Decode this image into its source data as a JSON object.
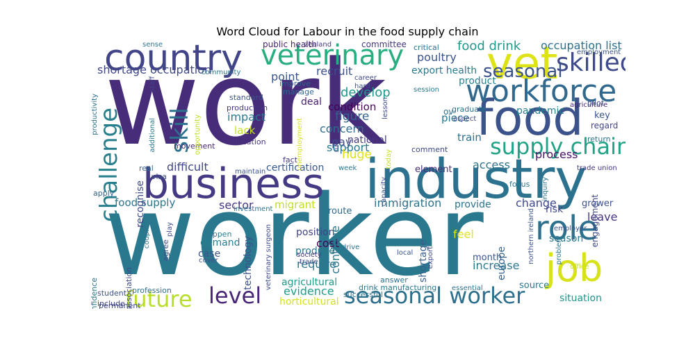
{
  "chart_data": {
    "type": "wordcloud",
    "title": "Word Cloud for Labour in the food supply chain",
    "colormap": "viridis",
    "words": [
      {
        "text": "work",
        "weight": 1.0,
        "color": "#472c7a"
      },
      {
        "text": "worker",
        "weight": 0.97,
        "color": "#2a788e"
      },
      {
        "text": "food",
        "weight": 0.46,
        "color": "#3b528b"
      },
      {
        "text": "industry",
        "weight": 0.44,
        "color": "#2c728e"
      },
      {
        "text": "business",
        "weight": 0.4,
        "color": "#443983"
      },
      {
        "text": "vet",
        "weight": 0.38,
        "color": "#dde318"
      },
      {
        "text": "country",
        "weight": 0.36,
        "color": "#414487"
      },
      {
        "text": "veterinary",
        "weight": 0.3,
        "color": "#29af7f"
      },
      {
        "text": "workforce",
        "weight": 0.28,
        "color": "#31688e"
      },
      {
        "text": "job",
        "weight": 0.3,
        "color": "#d8e219"
      },
      {
        "text": "role",
        "weight": 0.24,
        "color": "#2d708e"
      },
      {
        "text": "skilled",
        "weight": 0.22,
        "color": "#3e4a89"
      },
      {
        "text": "seasonal worker",
        "weight": 0.22,
        "color": "#2d708e"
      },
      {
        "text": "supply chain",
        "weight": 0.2,
        "color": "#20a386"
      },
      {
        "text": "future",
        "weight": 0.2,
        "color": "#b8de29"
      },
      {
        "text": "level",
        "weight": 0.2,
        "color": "#482576"
      },
      {
        "text": "challenge",
        "weight": 0.18,
        "color": "#277f8e"
      },
      {
        "text": "skill",
        "weight": 0.18,
        "color": "#2c728e"
      },
      {
        "text": "seasonal",
        "weight": 0.14,
        "color": "#3b528b"
      },
      {
        "text": "shortage occupation",
        "weight": 0.1,
        "color": "#3f4788"
      },
      {
        "text": "food drink",
        "weight": 0.12,
        "color": "#1f9a8a"
      },
      {
        "text": "occupation list",
        "weight": 0.1,
        "color": "#2d708e"
      },
      {
        "text": "employment",
        "weight": 0.06,
        "color": "#3b528b"
      },
      {
        "text": "agriculture",
        "weight": 0.05,
        "color": "#482878"
      },
      {
        "text": "poultry",
        "weight": 0.1,
        "color": "#39558c"
      },
      {
        "text": "export health",
        "weight": 0.1,
        "color": "#2a788e"
      },
      {
        "text": "product",
        "weight": 0.1,
        "color": "#25848e"
      },
      {
        "text": "point",
        "weight": 0.11,
        "color": "#39568c"
      },
      {
        "text": "recruit",
        "weight": 0.1,
        "color": "#3b528b"
      },
      {
        "text": "develop",
        "weight": 0.1,
        "color": "#1f968b"
      },
      {
        "text": "condition",
        "weight": 0.1,
        "color": "#440154"
      },
      {
        "text": "deal",
        "weight": 0.1,
        "color": "#481f70"
      },
      {
        "text": "impact",
        "weight": 0.1,
        "color": "#2a788e"
      },
      {
        "text": "lack",
        "weight": 0.1,
        "color": "#c5e021"
      },
      {
        "text": "education",
        "weight": 0.07,
        "color": "#46337e"
      },
      {
        "text": "figure",
        "weight": 0.12,
        "color": "#33638d"
      },
      {
        "text": "concern",
        "weight": 0.12,
        "color": "#2f6c8e"
      },
      {
        "text": "pay",
        "weight": 0.12,
        "color": "#3e4c8a"
      },
      {
        "text": "national",
        "weight": 0.1,
        "color": "#453781"
      },
      {
        "text": "support",
        "weight": 0.1,
        "color": "#2a788e"
      },
      {
        "text": "huge",
        "weight": 0.12,
        "color": "#dfe318"
      },
      {
        "text": "pandemic",
        "weight": 0.09,
        "color": "#26818e"
      },
      {
        "text": "key",
        "weight": 0.09,
        "color": "#3b528b"
      },
      {
        "text": "regard",
        "weight": 0.08,
        "color": "#414487"
      },
      {
        "text": "piece",
        "weight": 0.1,
        "color": "#2b758e"
      },
      {
        "text": "train",
        "weight": 0.1,
        "color": "#2c728e"
      },
      {
        "text": "difficult",
        "weight": 0.12,
        "color": "#404688"
      },
      {
        "text": "certification",
        "weight": 0.09,
        "color": "#38588c"
      },
      {
        "text": "access",
        "weight": 0.11,
        "color": "#2c728e"
      },
      {
        "text": "process",
        "weight": 0.1,
        "color": "#471063"
      },
      {
        "text": "element",
        "weight": 0.09,
        "color": "#472d7b"
      },
      {
        "text": "food supply",
        "weight": 0.11,
        "color": "#2a768e"
      },
      {
        "text": "sector",
        "weight": 0.11,
        "color": "#453882"
      },
      {
        "text": "migrant",
        "weight": 0.1,
        "color": "#c0df25"
      },
      {
        "text": "immigration",
        "weight": 0.11,
        "color": "#2c728e"
      },
      {
        "text": "provide",
        "weight": 0.1,
        "color": "#2c738e"
      },
      {
        "text": "change",
        "weight": 0.11,
        "color": "#3e4989"
      },
      {
        "text": "risk",
        "weight": 0.1,
        "color": "#404588"
      },
      {
        "text": "leave",
        "weight": 0.11,
        "color": "#46337f"
      },
      {
        "text": "grower",
        "weight": 0.09,
        "color": "#3b518b"
      },
      {
        "text": "season",
        "weight": 0.09,
        "color": "#2a768e"
      },
      {
        "text": "demand",
        "weight": 0.1,
        "color": "#277f8e"
      },
      {
        "text": "case",
        "weight": 0.1,
        "color": "#3a538b"
      },
      {
        "text": "cost",
        "weight": 0.11,
        "color": "#440154"
      },
      {
        "text": "produce",
        "weight": 0.1,
        "color": "#2a788e"
      },
      {
        "text": "position",
        "weight": 0.1,
        "color": "#414487"
      },
      {
        "text": "require",
        "weight": 0.11,
        "color": "#2b758e"
      },
      {
        "text": "feel",
        "weight": 0.12,
        "color": "#e2e418"
      },
      {
        "text": "month",
        "weight": 0.1,
        "color": "#3a548c"
      },
      {
        "text": "increase",
        "weight": 0.11,
        "color": "#2a778e"
      },
      {
        "text": "evidence",
        "weight": 0.11,
        "color": "#1f9e89"
      },
      {
        "text": "agricultural",
        "weight": 0.1,
        "color": "#1f988b"
      },
      {
        "text": "horticultural",
        "weight": 0.09,
        "color": "#d2e21b"
      },
      {
        "text": "situation",
        "weight": 0.1,
        "color": "#1f968b"
      },
      {
        "text": "source",
        "weight": 0.1,
        "color": "#2a768e"
      },
      {
        "text": "technology",
        "weight": 0.09,
        "color": "#3b528b"
      },
      {
        "text": "continue",
        "weight": 0.1,
        "color": "#2a788e"
      },
      {
        "text": "shortage",
        "weight": 0.1,
        "color": "#355e8d"
      },
      {
        "text": "europe",
        "weight": 0.09,
        "color": "#33638d"
      },
      {
        "text": "engagement",
        "weight": 0.08,
        "color": "#3f4889"
      },
      {
        "text": "recognise",
        "weight": 0.09,
        "color": "#3e4989"
      },
      {
        "text": "committee",
        "weight": 0.07,
        "color": "#453882"
      },
      {
        "text": "critical",
        "weight": 0.06,
        "color": "#2c738e"
      },
      {
        "text": "public health",
        "weight": 0.06,
        "color": "#482475"
      },
      {
        "text": "standard",
        "weight": 0.06,
        "color": "#3b528b"
      },
      {
        "text": "production",
        "weight": 0.06,
        "color": "#453781"
      },
      {
        "text": "improve",
        "weight": 0.05,
        "color": "#34608d"
      },
      {
        "text": "manage",
        "weight": 0.05,
        "color": "#31688e"
      },
      {
        "text": "career",
        "weight": 0.05,
        "color": "#3f4889"
      },
      {
        "text": "hard",
        "weight": 0.05,
        "color": "#3a548c"
      },
      {
        "text": "session",
        "weight": 0.05,
        "color": "#2a788e"
      },
      {
        "text": "pilot",
        "weight": 0.06,
        "color": "#3b528b"
      },
      {
        "text": "graduate",
        "weight": 0.05,
        "color": "#2c728e"
      },
      {
        "text": "aspect",
        "weight": 0.05,
        "color": "#3f4889"
      },
      {
        "text": "return",
        "weight": 0.06,
        "color": "#2c738e"
      },
      {
        "text": "trade union",
        "weight": 0.05,
        "color": "#453581"
      },
      {
        "text": "comment",
        "weight": 0.06,
        "color": "#3e4a89"
      },
      {
        "text": "focus",
        "weight": 0.05,
        "color": "#2c728e"
      },
      {
        "text": "movement",
        "weight": 0.06,
        "color": "#482475"
      },
      {
        "text": "fact",
        "weight": 0.05,
        "color": "#453882"
      },
      {
        "text": "real",
        "weight": 0.06,
        "color": "#2c728e"
      },
      {
        "text": "visa",
        "weight": 0.06,
        "color": "#3b518b"
      },
      {
        "text": "apply",
        "weight": 0.05,
        "color": "#33638d"
      },
      {
        "text": "maintain",
        "weight": 0.05,
        "color": "#39568c"
      },
      {
        "text": "week",
        "weight": 0.05,
        "color": "#2a778e"
      },
      {
        "text": "route",
        "weight": 0.08,
        "color": "#2f6b8e"
      },
      {
        "text": "investment",
        "weight": 0.05,
        "color": "#2c728e"
      },
      {
        "text": "happen",
        "weight": 0.06,
        "color": "#2a778e"
      },
      {
        "text": "agree",
        "weight": 0.06,
        "color": "#3e4c8a"
      },
      {
        "text": "cover",
        "weight": 0.05,
        "color": "#3a548c"
      },
      {
        "text": "employer",
        "weight": 0.05,
        "color": "#3b528b"
      },
      {
        "text": "office",
        "weight": 0.05,
        "color": "#c2df23"
      },
      {
        "text": "problem",
        "weight": 0.05,
        "color": "#2a768e"
      },
      {
        "text": "local",
        "weight": 0.05,
        "color": "#39568c"
      },
      {
        "text": "trade",
        "weight": 0.05,
        "color": "#3e4a89"
      },
      {
        "text": "society",
        "weight": 0.04,
        "color": "#453882"
      },
      {
        "text": "drive",
        "weight": 0.05,
        "color": "#2c738e"
      },
      {
        "text": "answer",
        "weight": 0.05,
        "color": "#2c728e"
      },
      {
        "text": "successful",
        "weight": 0.05,
        "color": "#2d708e"
      },
      {
        "text": "drink manufacturing",
        "weight": 0.05,
        "color": "#2a788e"
      },
      {
        "text": "essential",
        "weight": 0.05,
        "color": "#2c728e"
      },
      {
        "text": "association",
        "weight": 0.05,
        "color": "#3e4989"
      },
      {
        "text": "student",
        "weight": 0.05,
        "color": "#3b528b"
      },
      {
        "text": "profession",
        "weight": 0.05,
        "color": "#2d708e"
      },
      {
        "text": "include",
        "weight": 0.05,
        "color": "#404688"
      },
      {
        "text": "permanent",
        "weight": 0.05,
        "color": "#3f4788"
      },
      {
        "text": "confidence",
        "weight": 0.05,
        "color": "#2b758e"
      },
      {
        "text": "productivity",
        "weight": 0.04,
        "color": "#2c728e"
      },
      {
        "text": "sense",
        "weight": 0.04,
        "color": "#2c728e"
      },
      {
        "text": "community",
        "weight": 0.04,
        "color": "#2a788e"
      },
      {
        "text": "staff",
        "weight": 0.04,
        "color": "#414487"
      },
      {
        "text": "additional",
        "weight": 0.04,
        "color": "#2a788e"
      },
      {
        "text": "opportunity",
        "weight": 0.04,
        "color": "#bddf26"
      },
      {
        "text": "couple",
        "weight": 0.04,
        "color": "#2c728e"
      },
      {
        "text": "play",
        "weight": 0.04,
        "color": "#3e4c8a"
      },
      {
        "text": "veterinary surgeon",
        "weight": 0.04,
        "color": "#3e4a89"
      },
      {
        "text": "northern ireland",
        "weight": 0.04,
        "color": "#3b528b"
      },
      {
        "text": "unemployment",
        "weight": 0.04,
        "color": "#d8e219"
      },
      {
        "text": "inquiry",
        "weight": 0.04,
        "color": "#2c728e"
      },
      {
        "text": "rule",
        "weight": 0.04,
        "color": "#3e4a89"
      },
      {
        "text": "lesson",
        "weight": 0.04,
        "color": "#3e4a89"
      },
      {
        "text": "today",
        "weight": 0.04,
        "color": "#c8e020"
      },
      {
        "text": "capacity",
        "weight": 0.04,
        "color": "#3b528b"
      },
      {
        "text": "zealand",
        "weight": 0.04,
        "color": "#453882"
      },
      {
        "text": "ov",
        "weight": 0.05,
        "color": "#2c728e"
      },
      {
        "text": "export",
        "weight": 0.04,
        "color": "#3e4a89"
      }
    ]
  }
}
